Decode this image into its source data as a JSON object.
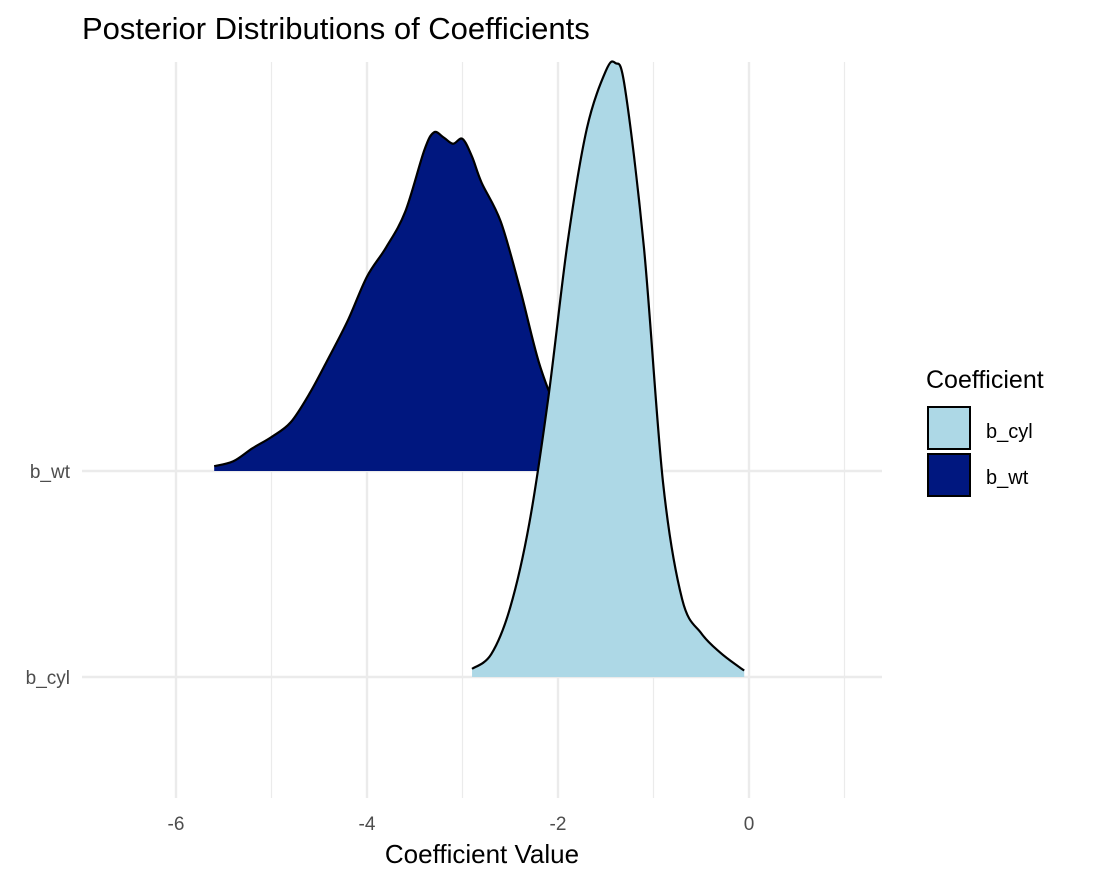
{
  "chart_data": {
    "type": "ridgeline",
    "title": "Posterior Distributions of Coefficients",
    "xlabel": "Coefficient Value",
    "ylabel": "",
    "xlim": [
      -7.0,
      1.4
    ],
    "x_ticks": [
      -6,
      -4,
      -2,
      0
    ],
    "x_tick_labels": [
      "-6",
      "-4",
      "-2",
      "0"
    ],
    "y_categories": [
      "b_cyl",
      "b_wt"
    ],
    "grid": true,
    "legend": {
      "title": "Coefficient",
      "position": "right",
      "entries": [
        {
          "label": "b_cyl",
          "color": "#add8e6"
        },
        {
          "label": "b_wt",
          "color": "#00177f"
        }
      ]
    },
    "series": [
      {
        "name": "b_wt",
        "color": "#00177f",
        "x": [
          -5.6,
          -5.4,
          -5.2,
          -5.0,
          -4.8,
          -4.6,
          -4.4,
          -4.2,
          -4.0,
          -3.8,
          -3.6,
          -3.4,
          -3.3,
          -3.2,
          -3.1,
          -3.0,
          -2.9,
          -2.8,
          -2.6,
          -2.4,
          -2.2,
          -2.0,
          -1.9
        ],
        "density": [
          0.03,
          0.06,
          0.14,
          0.21,
          0.3,
          0.48,
          0.7,
          0.93,
          1.2,
          1.38,
          1.6,
          1.98,
          2.09,
          2.06,
          2.02,
          2.05,
          1.94,
          1.78,
          1.54,
          1.13,
          0.67,
          0.35,
          0.23
        ]
      },
      {
        "name": "b_cyl",
        "color": "#add8e6",
        "x": [
          -2.9,
          -2.7,
          -2.5,
          -2.3,
          -2.1,
          -1.9,
          -1.7,
          -1.5,
          -1.4,
          -1.3,
          -1.1,
          -0.9,
          -0.7,
          -0.5,
          -0.3,
          -0.1,
          -0.05
        ],
        "density": [
          0.05,
          0.14,
          0.43,
          0.95,
          1.73,
          2.68,
          3.38,
          3.74,
          3.79,
          3.64,
          2.65,
          1.2,
          0.48,
          0.27,
          0.15,
          0.06,
          0.04
        ]
      }
    ]
  }
}
